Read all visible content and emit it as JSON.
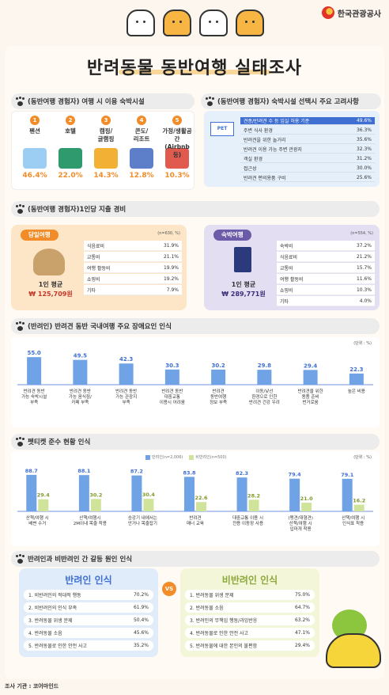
{
  "brand": {
    "logo_text": "한국관광공사"
  },
  "title": "반려동물 동반여행 실태조사",
  "sections": {
    "lodging": {
      "heading": "(동반여행 경험자) 여행 시 이용 숙박시설"
    },
    "consider": {
      "heading": "(동반여행 경험자) 숙박시설 선택시 주요 고려사항",
      "sign": "PET"
    },
    "spend": {
      "heading": "(동반여행 경험자)1인당 지출 경비"
    },
    "obstacle": {
      "heading": "(반려인) 반려견 동반 국내여행 주요 장애요인 인식"
    },
    "etiquette": {
      "heading": "펫티켓 준수 현황 인식"
    },
    "conflict": {
      "heading": "반려인과 비반려인 간 갈등 원인 인식"
    }
  },
  "lodging_items": [
    {
      "num": "1",
      "name": "펜션",
      "pct": "46.4%"
    },
    {
      "num": "2",
      "name": "호텔",
      "pct": "22.0%"
    },
    {
      "num": "3",
      "name": "캠핑/\n글램핑",
      "pct": "14.3%"
    },
    {
      "num": "4",
      "name": "콘도/\n리조트",
      "pct": "12.8%"
    },
    {
      "num": "5",
      "name": "가정/생활공간\n(Airbnb 등)",
      "pct": "10.3%"
    }
  ],
  "consider_items": [
    {
      "label": "견종/반려견 수 등 입실 허용 기준",
      "value": "49.6%"
    },
    {
      "label": "주변 식사 환경",
      "value": "36.3%"
    },
    {
      "label": "반려견을 위한 놀거리",
      "value": "35.6%"
    },
    {
      "label": "반려견 이용 가능 주변 관광지",
      "value": "32.3%"
    },
    {
      "label": "객실 환경",
      "value": "31.2%"
    },
    {
      "label": "접근성",
      "value": "30.0%"
    },
    {
      "label": "반려견 편의용품 구비",
      "value": "25.6%"
    }
  ],
  "spend": {
    "day": {
      "tag": "당일여행",
      "n": "(n=630, %)",
      "avg_label": "1인 평균",
      "avg_value": "125,709원",
      "won": "₩",
      "rows": [
        {
          "label": "식음료비",
          "value": "31.9%"
        },
        {
          "label": "교통비",
          "value": "21.1%"
        },
        {
          "label": "여행 활동비",
          "value": "19.9%"
        },
        {
          "label": "쇼핑비",
          "value": "19.2%"
        },
        {
          "label": "기타",
          "value": "7.9%"
        }
      ]
    },
    "stay": {
      "tag": "숙박여행",
      "n": "(n=554, %)",
      "avg_label": "1인 평균",
      "avg_value": "289,771원",
      "won": "₩",
      "rows": [
        {
          "label": "숙박비",
          "value": "37.2%"
        },
        {
          "label": "식음료비",
          "value": "21.2%"
        },
        {
          "label": "교통비",
          "value": "15.7%"
        },
        {
          "label": "여행 활동비",
          "value": "11.6%"
        },
        {
          "label": "쇼핑비",
          "value": "10.3%"
        },
        {
          "label": "기타",
          "value": "4.0%"
        }
      ]
    }
  },
  "chart_data": [
    {
      "type": "bar",
      "unit": "(단위 : %)",
      "categories": [
        "반려견 동반\n가능 숙박시설\n부족",
        "반려견 동반\n가능 음식점/\n카페 부족",
        "반려견 동반\n가능 관광지\n부족",
        "반려견 동반\n대중교통\n이용시 어려움",
        "반려견\n동반여행\n정보 부족",
        "이동/낯선\n환경으로 인한\n반려견 건강 우려",
        "반려견을 위한\n용품 준비\n번거로움",
        "높은 비용"
      ],
      "values": [
        55.0,
        49.5,
        42.3,
        30.3,
        30.2,
        29.8,
        29.4,
        22.3
      ],
      "ylim": [
        0,
        60
      ]
    },
    {
      "type": "bar",
      "unit": "(단위 : %)",
      "categories": [
        "산책/여행 시\n배변 수거",
        "산책/여행시\n2M이내 목줄 착용",
        "승강기 내에서는\n안거나 목줄잡기",
        "반려견\n매너 교육",
        "대중교통 이용 시\n전용 이동장 사용",
        "(맹견/대형견)\n산책/여행 시\n입마개 착용",
        "산책/여행 시\n인식표 착용"
      ],
      "series": [
        {
          "name": "반려인(n=2,006)",
          "values": [
            88.7,
            88.1,
            87.2,
            83.8,
            82.3,
            79.4,
            79.1
          ]
        },
        {
          "name": "비반려인(n=500)",
          "values": [
            29.4,
            30.2,
            30.4,
            22.6,
            28.2,
            21.0,
            16.2
          ]
        }
      ],
      "ylim": [
        0,
        100
      ]
    }
  ],
  "conflict": {
    "vs": "VS",
    "owner": {
      "title": "반려인 인식",
      "items": [
        {
          "label": "1. 비반려인의 적대적 행동",
          "value": "70.2%"
        },
        {
          "label": "2. 비반려인의 인식 부족",
          "value": "61.9%"
        },
        {
          "label": "3. 반려동물 위생 문제",
          "value": "50.4%"
        },
        {
          "label": "4. 반려동물 소음",
          "value": "45.6%"
        },
        {
          "label": "5. 반려동물로 인한 안전 사고",
          "value": "35.2%"
        }
      ]
    },
    "nonowner": {
      "title": "비반려인 인식",
      "items": [
        {
          "label": "1. 반려동물 위생 문제",
          "value": "75.0%"
        },
        {
          "label": "2. 반려동물 소음",
          "value": "64.7%"
        },
        {
          "label": "3. 반려인의 무책임 행동/과잉반응",
          "value": "63.2%"
        },
        {
          "label": "4. 반려동물로 인한 안전 사고",
          "value": "47.1%"
        },
        {
          "label": "5. 반려동물에 대한 본인의 불편함",
          "value": "29.4%"
        }
      ]
    }
  },
  "source": "조사 기관 : 코어마인드",
  "colors": {
    "accent_orange": "#f28c28",
    "blue": "#6fa3e6",
    "green": "#cfe39a",
    "purple": "#6b5ba8"
  }
}
